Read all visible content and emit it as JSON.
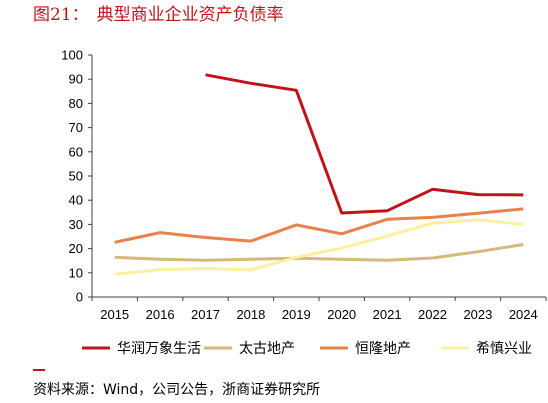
{
  "figure": {
    "number": "图21：",
    "source": "资料来源：Wind，公司公告，浙商证券研究所"
  },
  "chart_data": {
    "type": "line",
    "title": "典型商业企业资产负债率",
    "x": [
      "2015",
      "2016",
      "2017",
      "2018",
      "2019",
      "2020",
      "2021",
      "2022",
      "2023",
      "2024"
    ],
    "ylim": [
      0,
      100
    ],
    "yticks": [
      0,
      10,
      20,
      30,
      40,
      50,
      60,
      70,
      80,
      90,
      100
    ],
    "grid": false,
    "legend": "bottom",
    "series": [
      {
        "name": "华润万象生活",
        "color": "#C0141B",
        "values": [
          null,
          null,
          91.8,
          88.3,
          85.4,
          34.7,
          35.6,
          44.5,
          42.3,
          42.2
        ]
      },
      {
        "name": "太古地产",
        "color": "#D5B87A",
        "values": [
          16.4,
          15.6,
          15.2,
          15.6,
          16.0,
          15.6,
          15.2,
          16.1,
          18.7,
          21.7
        ]
      },
      {
        "name": "恒隆地产",
        "color": "#E9814B",
        "values": [
          22.6,
          26.6,
          24.6,
          23.1,
          29.8,
          26.1,
          32.1,
          32.9,
          34.6,
          36.4
        ]
      },
      {
        "name": "希慎兴业",
        "color": "#FDEFA0",
        "values": [
          9.4,
          11.3,
          11.8,
          11.2,
          16.4,
          20.2,
          25.2,
          30.5,
          31.9,
          30.0
        ]
      }
    ]
  }
}
